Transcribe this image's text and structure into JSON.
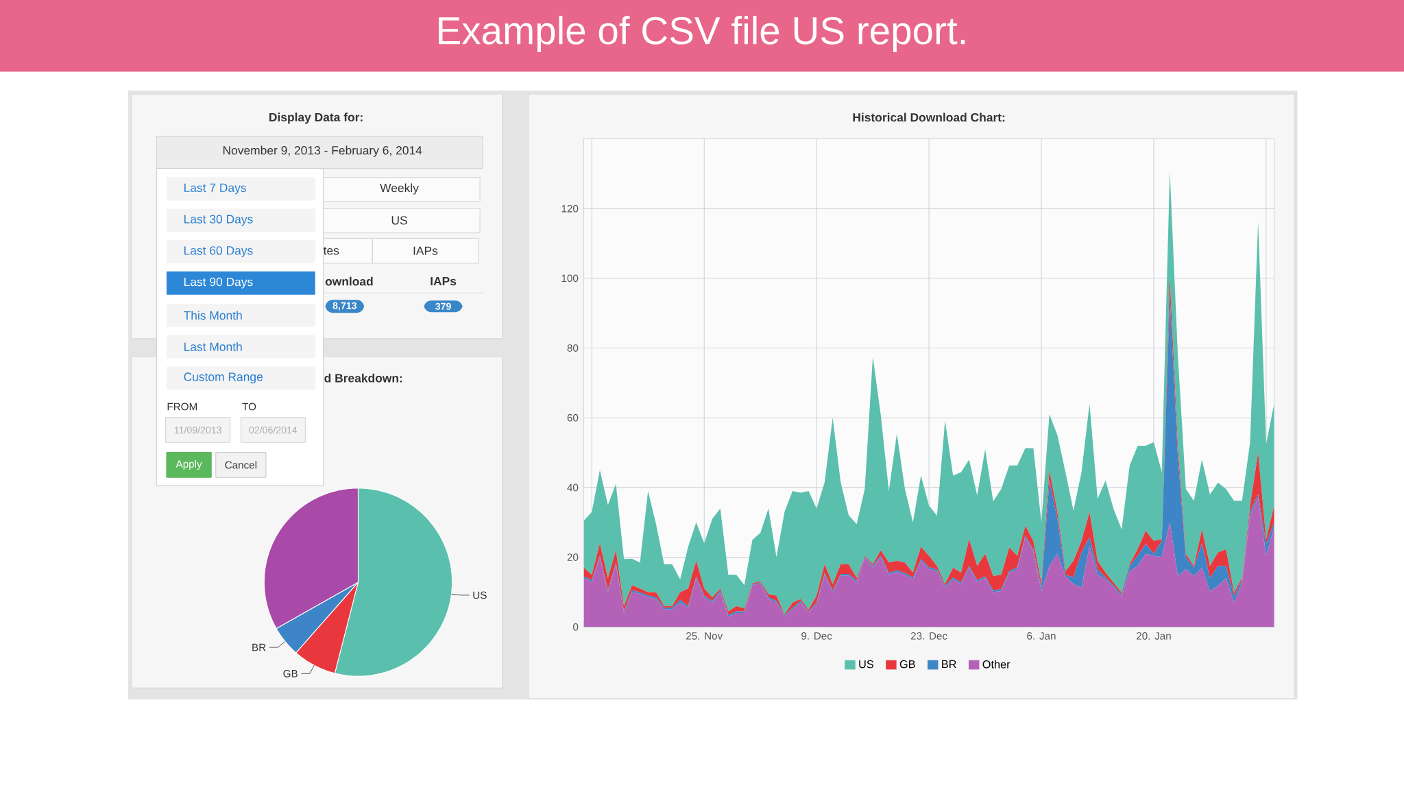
{
  "chart_data": [
    {
      "type": "other",
      "title": "Example of CSV file US report.",
      "annotations": [
        "Display Data for:",
        "November 9, 2013 - February 6, 2014",
        "Last 7 Days",
        "Last 30 Days",
        "Last 60 Days",
        "Last 90 Days",
        "This Month",
        "Last Month",
        "Custom Range",
        "FROM",
        "TO",
        "11/09/2013",
        "02/06/2014",
        "Apply",
        "Cancel",
        "Weekly",
        "US",
        "tes",
        "IAPs",
        "ownload",
        "IAPs",
        "8,713",
        "379"
      ]
    },
    {
      "type": "pie",
      "title": "d Breakdown:",
      "categories": [
        "US",
        "GB",
        "BR",
        null
      ],
      "values": [
        54,
        7.5,
        5.3,
        33.2
      ],
      "colors": [
        "#5bbfad",
        "#e8383d",
        "#3d85c6",
        "#a94aa8"
      ]
    },
    {
      "type": "area",
      "stacked": true,
      "title": "Historical Download Chart:",
      "grid": true,
      "legend": "bottom",
      "xlim": [
        "2013-11-10",
        "2014-02-04"
      ],
      "ylim": [
        0,
        140
      ],
      "yticks": [
        0,
        20,
        40,
        60,
        80,
        100,
        120
      ],
      "xticks": [
        {
          "value": "2013-11-11",
          "label": null
        },
        {
          "value": "2013-11-25",
          "label": "25. Nov"
        },
        {
          "value": "2013-12-09",
          "label": "9. Dec"
        },
        {
          "value": "2013-12-23",
          "label": "23. Dec"
        },
        {
          "value": "2014-01-06",
          "label": "6. Jan"
        },
        {
          "value": "2014-01-20",
          "label": "20. Jan"
        },
        {
          "value": "2014-02-03",
          "label": null
        }
      ],
      "x": [
        "2013-11-10",
        "2013-11-11",
        "2013-11-12",
        "2013-11-13",
        "2013-11-14",
        "2013-11-15",
        "2013-11-16",
        "2013-11-17",
        "2013-11-18",
        "2013-11-19",
        "2013-11-20",
        "2013-11-21",
        "2013-11-22",
        "2013-11-23",
        "2013-11-24",
        "2013-11-25",
        "2013-11-26",
        "2013-11-27",
        "2013-11-28",
        "2013-11-29",
        "2013-11-30",
        "2013-12-01",
        "2013-12-02",
        "2013-12-03",
        "2013-12-04",
        "2013-12-05",
        "2013-12-06",
        "2013-12-07",
        "2013-12-08",
        "2013-12-09",
        "2013-12-10",
        "2013-12-11",
        "2013-12-12",
        "2013-12-13",
        "2013-12-14",
        "2013-12-15",
        "2013-12-16",
        "2013-12-17",
        "2013-12-18",
        "2013-12-19",
        "2013-12-20",
        "2013-12-21",
        "2013-12-22",
        "2013-12-23",
        "2013-12-24",
        "2013-12-25",
        "2013-12-26",
        "2013-12-27",
        "2013-12-28",
        "2013-12-29",
        "2013-12-30",
        "2013-12-31",
        "2014-01-01",
        "2014-01-02",
        "2014-01-03",
        "2014-01-04",
        "2014-01-05",
        "2014-01-06",
        "2014-01-07",
        "2014-01-08",
        "2014-01-09",
        "2014-01-10",
        "2014-01-11",
        "2014-01-12",
        "2014-01-13",
        "2014-01-14",
        "2014-01-15",
        "2014-01-16",
        "2014-01-17",
        "2014-01-18",
        "2014-01-19",
        "2014-01-20",
        "2014-01-21",
        "2014-01-22",
        "2014-01-23",
        "2014-01-24",
        "2014-01-25",
        "2014-01-26",
        "2014-01-27",
        "2014-01-28",
        "2014-01-29",
        "2014-01-30",
        "2014-01-31",
        "2014-02-01",
        "2014-02-02",
        "2014-02-03",
        "2014-02-04"
      ],
      "series": [
        {
          "name": "Other",
          "color": "#b462b8",
          "values": [
            14,
            13,
            20,
            10,
            18,
            4,
            10,
            9.5,
            8.5,
            8,
            5,
            5,
            7,
            5.5,
            14,
            8.5,
            7,
            10,
            3,
            4,
            4,
            12,
            12.5,
            8,
            7,
            3,
            5,
            7,
            4.3,
            6.5,
            15,
            10,
            14.7,
            14.7,
            12.8,
            20,
            17,
            20,
            15,
            15.8,
            15,
            13.7,
            19,
            16.6,
            16,
            11.3,
            13.7,
            12.3,
            17,
            13,
            14,
            10,
            10.3,
            15.6,
            16.6,
            25.7,
            21.8,
            10.3,
            17.5,
            21,
            14.6,
            12.3,
            11.3,
            23.3,
            15,
            13.7,
            11.3,
            8.9,
            16,
            17.5,
            21,
            20.4,
            20,
            30,
            14.6,
            16.6,
            14.6,
            17,
            10.3,
            11.8,
            14,
            7,
            12.7,
            32,
            37,
            20.4,
            28.6
          ]
        },
        {
          "name": "BR",
          "color": "#3d85c6",
          "values": [
            0.5,
            0.5,
            0.5,
            0.5,
            0.5,
            0.5,
            0.5,
            0.5,
            0.5,
            0.5,
            0.5,
            0.5,
            0.8,
            0.5,
            0.5,
            0.5,
            0.5,
            0.5,
            0.5,
            0.5,
            0.5,
            0.3,
            0.3,
            0.5,
            0.5,
            0.3,
            0.5,
            0.5,
            0.2,
            0.5,
            0.5,
            0.5,
            0.5,
            0.5,
            0.5,
            0.2,
            0.5,
            0.5,
            0.5,
            0.5,
            0.5,
            0.5,
            0.5,
            0.5,
            0.5,
            0.5,
            0.5,
            0.5,
            0.5,
            0.5,
            0.5,
            0.5,
            0.5,
            0.5,
            0.5,
            0.5,
            0.5,
            1,
            24.5,
            10,
            0.4,
            1.9,
            10.1,
            2.4,
            1.6,
            0.5,
            0.5,
            0.5,
            1.5,
            2.9,
            2.8,
            0.6,
            4.7,
            65,
            34.4,
            3.4,
            2.4,
            7,
            3.7,
            5.7,
            3.5,
            1.9,
            0.7,
            1,
            1,
            3.4,
            1.4
          ]
        },
        {
          "name": "GB",
          "color": "#e8383d",
          "values": [
            2.5,
            1.5,
            3.5,
            3.5,
            3.5,
            1.5,
            1.5,
            1,
            1,
            1.5,
            0.5,
            0.5,
            2.2,
            5,
            4.5,
            2,
            1,
            0.5,
            1,
            1.5,
            0.8,
            0.3,
            0.3,
            0.9,
            1.5,
            0.3,
            1.5,
            0.5,
            0.5,
            2,
            2.5,
            1.8,
            2.8,
            2.8,
            0.7,
            0.2,
            0.5,
            1.5,
            3,
            2.7,
            3,
            1.4,
            3.5,
            3.3,
            1,
            0.5,
            2.8,
            2.8,
            7.7,
            4,
            6.5,
            4.1,
            4.2,
            6.7,
            3.3,
            2.8,
            2.4,
            1.4,
            2.9,
            1.9,
            1,
            4.8,
            3.3,
            7.3,
            2.4,
            1.4,
            0.9,
            0.5,
            0.5,
            2,
            3.8,
            3.7,
            0.5,
            5.5,
            3,
            1,
            0.5,
            4,
            3.5,
            3.9,
            4.8,
            1,
            0.6,
            1.8,
            12,
            1.4,
            4.8
          ]
        },
        {
          "name": "US",
          "color": "#5bbfad",
          "values": [
            13.5,
            18,
            21,
            21,
            19,
            13.5,
            7.6,
            7.5,
            29,
            19.5,
            12,
            12,
            3.7,
            12,
            11,
            13,
            22.5,
            23,
            10.5,
            9,
            6.7,
            12.4,
            13.9,
            24.6,
            11,
            29.4,
            32,
            30.5,
            34,
            25,
            23.5,
            47.7,
            23.5,
            14,
            15.5,
            19.2,
            59.5,
            38.7,
            20.5,
            36.4,
            21.1,
            14.4,
            20.4,
            14.4,
            14.4,
            46.9,
            26.4,
            28.8,
            22.8,
            20.2,
            30,
            21.4,
            24.6,
            23.5,
            25.9,
            22.3,
            26.6,
            17.3,
            16.1,
            22.1,
            28.4,
            14.4,
            19.7,
            31,
            17.8,
            26.4,
            21.1,
            18.1,
            28.3,
            29.6,
            24.4,
            28.3,
            19.2,
            30.2,
            26,
            18.6,
            18.7,
            20,
            20.5,
            20,
            17.3,
            26.3,
            22.2,
            18.2,
            66.3,
            27.3,
            29.2
          ]
        }
      ]
    }
  ]
}
